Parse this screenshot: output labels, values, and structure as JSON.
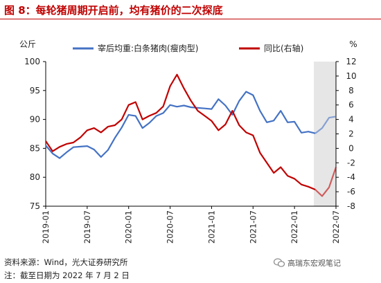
{
  "title": "图 8：每轮猪周期开启前，均有猪价的二次探底",
  "footer": {
    "source": "资料来源：Wind，光大证券研究所",
    "note": "注：截至日期为 2022 年 7 月 2 日",
    "watermark": "高瑞东宏观笔记"
  },
  "colors": {
    "blue": "#4472c4",
    "red": "#c00000",
    "title": "#c00000",
    "shade": "#e6e6e6"
  },
  "chart_data": {
    "type": "line",
    "title": "图 8：每轮猪周期开启前，均有猪价的二次探底",
    "x_ticks": [
      "2019-01",
      "2019-07",
      "2020-01",
      "2020-07",
      "2021-01",
      "2021-07",
      "2022-01",
      "2022-07"
    ],
    "left_axis": {
      "label": "公斤",
      "ylim": [
        75,
        100
      ],
      "ticks": [
        75,
        80,
        85,
        90,
        95,
        100
      ]
    },
    "right_axis": {
      "label": "%",
      "ylim": [
        -8,
        12
      ],
      "ticks": [
        -8,
        -6,
        -4,
        -2,
        0,
        2,
        4,
        6,
        8,
        10,
        12
      ]
    },
    "legend": "top",
    "grid": false,
    "shaded_range": [
      "2022-04",
      "2022-07"
    ],
    "series": [
      {
        "name": "宰后均重:白条猪肉(瘦肉型)",
        "axis": "left",
        "color": "#4472c4",
        "points": [
          [
            "2019-01",
            85.5
          ],
          [
            "2019-02",
            84.1
          ],
          [
            "2019-03",
            83.3
          ],
          [
            "2019-04",
            84.3
          ],
          [
            "2019-05",
            85.2
          ],
          [
            "2019-06",
            85.3
          ],
          [
            "2019-07",
            85.4
          ],
          [
            "2019-08",
            84.8
          ],
          [
            "2019-09",
            83.5
          ],
          [
            "2019-10",
            84.7
          ],
          [
            "2019-11",
            86.8
          ],
          [
            "2019-12",
            88.6
          ],
          [
            "2020-01",
            90.8
          ],
          [
            "2020-02",
            90.6
          ],
          [
            "2020-03",
            88.5
          ],
          [
            "2020-04",
            89.4
          ],
          [
            "2020-05",
            90.6
          ],
          [
            "2020-06",
            91.1
          ],
          [
            "2020-07",
            92.5
          ],
          [
            "2020-08",
            92.2
          ],
          [
            "2020-09",
            92.4
          ],
          [
            "2020-10",
            92.1
          ],
          [
            "2020-11",
            92.0
          ],
          [
            "2020-12",
            91.9
          ],
          [
            "2021-01",
            91.8
          ],
          [
            "2021-02",
            93.5
          ],
          [
            "2021-03",
            92.4
          ],
          [
            "2021-04",
            90.8
          ],
          [
            "2021-05",
            93.2
          ],
          [
            "2021-06",
            94.8
          ],
          [
            "2021-07",
            94.2
          ],
          [
            "2021-08",
            91.5
          ],
          [
            "2021-09",
            89.5
          ],
          [
            "2021-10",
            89.8
          ],
          [
            "2021-11",
            91.5
          ],
          [
            "2021-12",
            89.5
          ],
          [
            "2022-01",
            89.6
          ],
          [
            "2022-02",
            87.7
          ],
          [
            "2022-03",
            87.9
          ],
          [
            "2022-04",
            87.6
          ],
          [
            "2022-05",
            88.5
          ],
          [
            "2022-06",
            90.3
          ],
          [
            "2022-07",
            90.5
          ]
        ]
      },
      {
        "name": "同比(右轴)",
        "axis": "right",
        "color": "#c00000",
        "points": [
          [
            "2019-01",
            1.0
          ],
          [
            "2019-02",
            -0.4
          ],
          [
            "2019-03",
            0.2
          ],
          [
            "2019-04",
            0.6
          ],
          [
            "2019-05",
            0.8
          ],
          [
            "2019-06",
            1.5
          ],
          [
            "2019-07",
            2.5
          ],
          [
            "2019-08",
            2.8
          ],
          [
            "2019-09",
            2.2
          ],
          [
            "2019-10",
            3.0
          ],
          [
            "2019-11",
            3.2
          ],
          [
            "2019-12",
            4.0
          ],
          [
            "2020-01",
            6.0
          ],
          [
            "2020-02",
            6.4
          ],
          [
            "2020-03",
            4.0
          ],
          [
            "2020-04",
            4.5
          ],
          [
            "2020-05",
            4.9
          ],
          [
            "2020-06",
            5.8
          ],
          [
            "2020-07",
            8.6
          ],
          [
            "2020-08",
            10.2
          ],
          [
            "2020-09",
            8.3
          ],
          [
            "2020-10",
            6.6
          ],
          [
            "2020-11",
            5.2
          ],
          [
            "2020-12",
            4.5
          ],
          [
            "2021-01",
            3.8
          ],
          [
            "2021-02",
            2.5
          ],
          [
            "2021-03",
            3.3
          ],
          [
            "2021-04",
            5.2
          ],
          [
            "2021-05",
            3.2
          ],
          [
            "2021-06",
            2.2
          ],
          [
            "2021-07",
            1.8
          ],
          [
            "2021-08",
            -0.6
          ],
          [
            "2021-09",
            -2.0
          ],
          [
            "2021-10",
            -3.4
          ],
          [
            "2021-11",
            -2.6
          ],
          [
            "2021-12",
            -3.8
          ],
          [
            "2022-01",
            -4.2
          ],
          [
            "2022-02",
            -5.0
          ],
          [
            "2022-03",
            -5.3
          ],
          [
            "2022-04",
            -5.7
          ],
          [
            "2022-05",
            -6.6
          ],
          [
            "2022-06",
            -5.4
          ],
          [
            "2022-07",
            -2.6
          ]
        ]
      }
    ]
  }
}
